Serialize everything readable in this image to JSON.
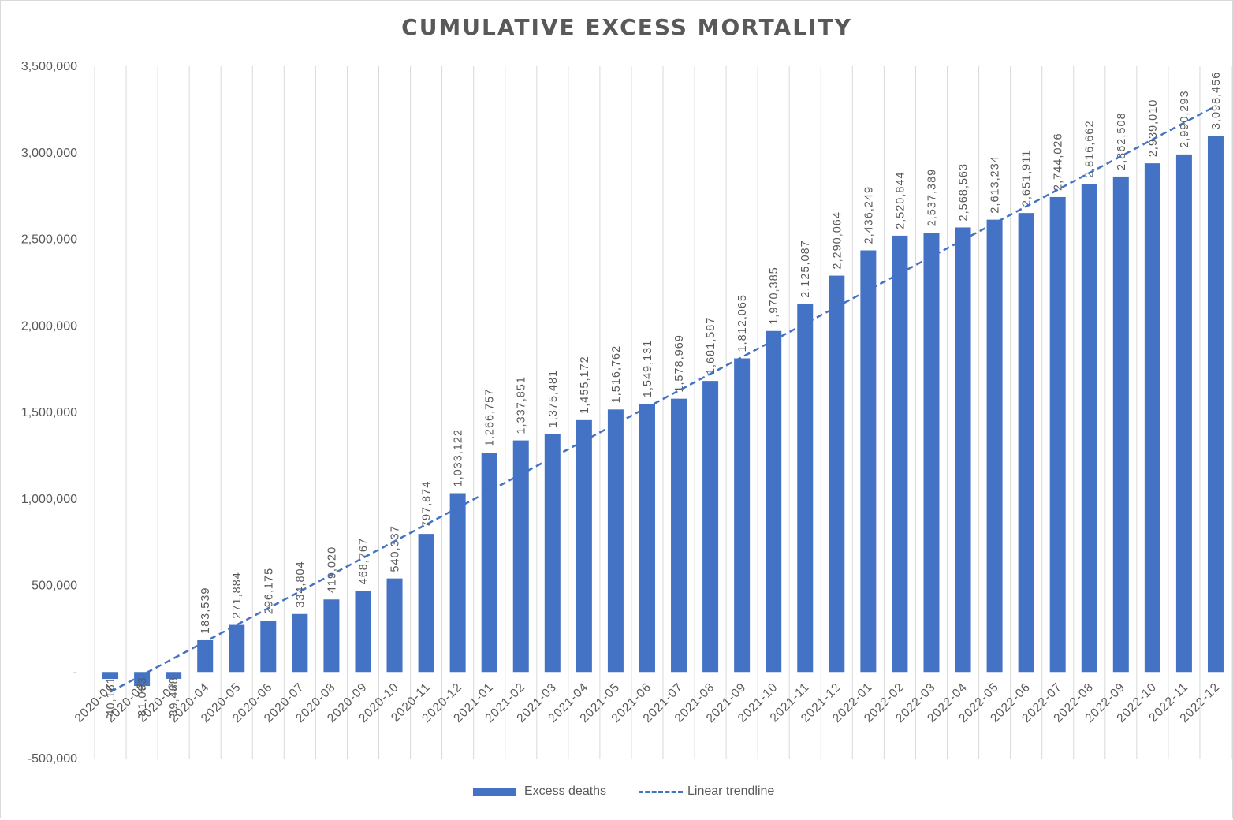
{
  "chart_data": {
    "type": "bar",
    "title": "CUMULATIVE EXCESS MORTALITY",
    "xlabel": "",
    "ylabel": "",
    "ylim": [
      -500000,
      3500000
    ],
    "y_ticks": [
      {
        "value": 3500000,
        "label": "3,500,000"
      },
      {
        "value": 3000000,
        "label": "3,000,000"
      },
      {
        "value": 2500000,
        "label": "2,500,000"
      },
      {
        "value": 2000000,
        "label": "2,000,000"
      },
      {
        "value": 1500000,
        "label": "1,500,000"
      },
      {
        "value": 1000000,
        "label": "1,000,000"
      },
      {
        "value": 500000,
        "label": "500,000"
      },
      {
        "value": 0,
        "label": "-"
      },
      {
        "value": -500000,
        "label": "-500,000"
      }
    ],
    "grid": "vertical",
    "legend_position": "bottom",
    "categories": [
      "2020-01",
      "2020-02",
      "2020-03",
      "2020-04",
      "2020-05",
      "2020-06",
      "2020-07",
      "2020-08",
      "2020-09",
      "2020-10",
      "2020-11",
      "2020-12",
      "2021-01",
      "2021-02",
      "2021-03",
      "2021-04",
      "2021-05",
      "2021-06",
      "2021-07",
      "2021-08",
      "2021-09",
      "2021-10",
      "2021-11",
      "2021-12",
      "2022-01",
      "2022-02",
      "2022-03",
      "2022-04",
      "2022-05",
      "2022-06",
      "2022-07",
      "2022-08",
      "2022-09",
      "2022-10",
      "2022-11",
      "2022-12"
    ],
    "series": [
      {
        "name": "Excess deaths",
        "type": "bar",
        "color": "#4472c4",
        "values": [
          -40161,
          -81093,
          -39488,
          183539,
          271884,
          296175,
          334804,
          419020,
          468767,
          540337,
          797874,
          1033122,
          1266757,
          1337851,
          1375481,
          1455172,
          1516762,
          1549131,
          1578969,
          1681587,
          1812065,
          1970385,
          2125087,
          2290064,
          2436249,
          2520844,
          2537389,
          2568563,
          2613234,
          2651911,
          2744026,
          2816662,
          2862508,
          2939010,
          2990293,
          3098456
        ],
        "labels": [
          "-40,161",
          "-81,093",
          "-39,488",
          "183,539",
          "271,884",
          "296,175",
          "334,804",
          "419,020",
          "468,767",
          "540,337",
          "797,874",
          "1,033,122",
          "1,266,757",
          "1,337,851",
          "1,375,481",
          "1,455,172",
          "1,516,762",
          "1,549,131",
          "1,578,969",
          "1,681,587",
          "1,812,065",
          "1,970,385",
          "2,125,087",
          "2,290,064",
          "2,436,249",
          "2,520,844",
          "2,537,389",
          "2,568,563",
          "2,613,234",
          "2,651,911",
          "2,744,026",
          "2,816,662",
          "2,862,508",
          "2,939,010",
          "2,990,293",
          "3,098,456"
        ]
      },
      {
        "name": "Linear trendline",
        "type": "line",
        "style": "dashed",
        "color": "#4472c4",
        "start_value": -115000,
        "end_value": 3270000
      }
    ]
  }
}
